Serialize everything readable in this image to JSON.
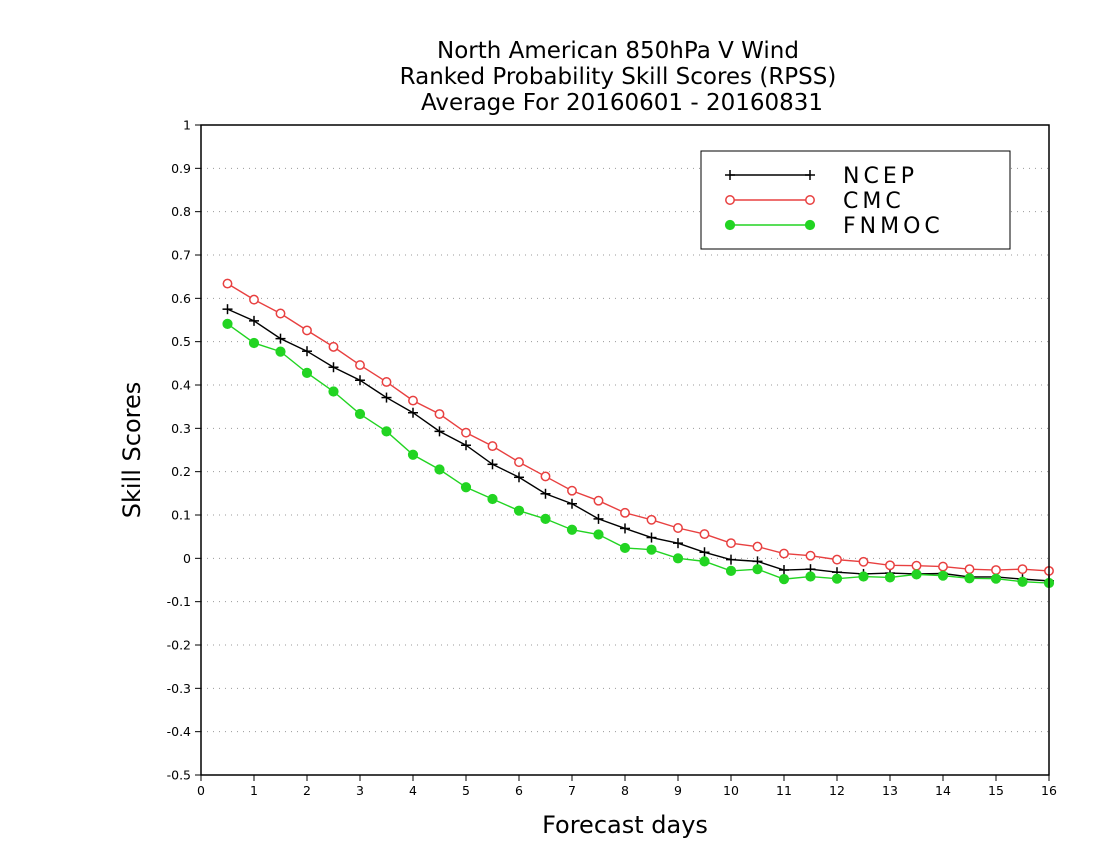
{
  "chart_data": {
    "type": "line",
    "title": [
      "North American 850hPa V Wind",
      "Ranked Probability Skill Scores (RPSS)",
      "Average For 20160601 - 20160831"
    ],
    "xlabel": "Forecast days",
    "ylabel": "Skill Scores",
    "xlim": [
      0,
      16
    ],
    "ylim": [
      -0.5,
      1
    ],
    "x_ticks": [
      0,
      1,
      2,
      3,
      4,
      5,
      6,
      7,
      8,
      9,
      10,
      11,
      12,
      13,
      14,
      15,
      16
    ],
    "y_ticks": [
      -0.5,
      -0.4,
      -0.3,
      -0.2,
      -0.1,
      0,
      0.1,
      0.2,
      0.3,
      0.4,
      0.5,
      0.6,
      0.7,
      0.8,
      0.9,
      1
    ],
    "grid": "horizontal dotted",
    "legend_position": "top-right",
    "x": [
      0.5,
      1,
      1.5,
      2,
      2.5,
      3,
      3.5,
      4,
      4.5,
      5,
      5.5,
      6,
      6.5,
      7,
      7.5,
      8,
      8.5,
      9,
      9.5,
      10,
      10.5,
      11,
      11.5,
      12,
      12.5,
      13,
      13.5,
      14,
      14.5,
      15,
      15.5,
      16
    ],
    "series": [
      {
        "name": "NCEP",
        "color": "#000000",
        "marker": "plus",
        "values": [
          0.575,
          0.548,
          0.507,
          0.478,
          0.441,
          0.411,
          0.371,
          0.336,
          0.293,
          0.261,
          0.217,
          0.187,
          0.149,
          0.126,
          0.091,
          0.069,
          0.048,
          0.035,
          0.014,
          -0.003,
          -0.007,
          -0.027,
          -0.025,
          -0.032,
          -0.036,
          -0.034,
          -0.036,
          -0.035,
          -0.043,
          -0.043,
          -0.048,
          -0.052
        ]
      },
      {
        "name": "CMC",
        "color": "#e84040",
        "marker": "open-circle",
        "values": [
          0.634,
          0.597,
          0.565,
          0.526,
          0.488,
          0.446,
          0.407,
          0.364,
          0.333,
          0.29,
          0.259,
          0.222,
          0.189,
          0.156,
          0.133,
          0.105,
          0.089,
          0.07,
          0.056,
          0.035,
          0.027,
          0.011,
          0.006,
          -0.003,
          -0.008,
          -0.016,
          -0.017,
          -0.019,
          -0.025,
          -0.027,
          -0.025,
          -0.029
        ]
      },
      {
        "name": "FNMOC",
        "color": "#22d422",
        "marker": "filled-circle",
        "values": [
          0.541,
          0.497,
          0.477,
          0.428,
          0.385,
          0.333,
          0.293,
          0.239,
          0.205,
          0.164,
          0.137,
          0.11,
          0.091,
          0.066,
          0.055,
          0.024,
          0.02,
          0.0,
          -0.007,
          -0.029,
          -0.025,
          -0.048,
          -0.042,
          -0.047,
          -0.042,
          -0.044,
          -0.037,
          -0.04,
          -0.046,
          -0.047,
          -0.054,
          -0.057
        ]
      }
    ]
  }
}
